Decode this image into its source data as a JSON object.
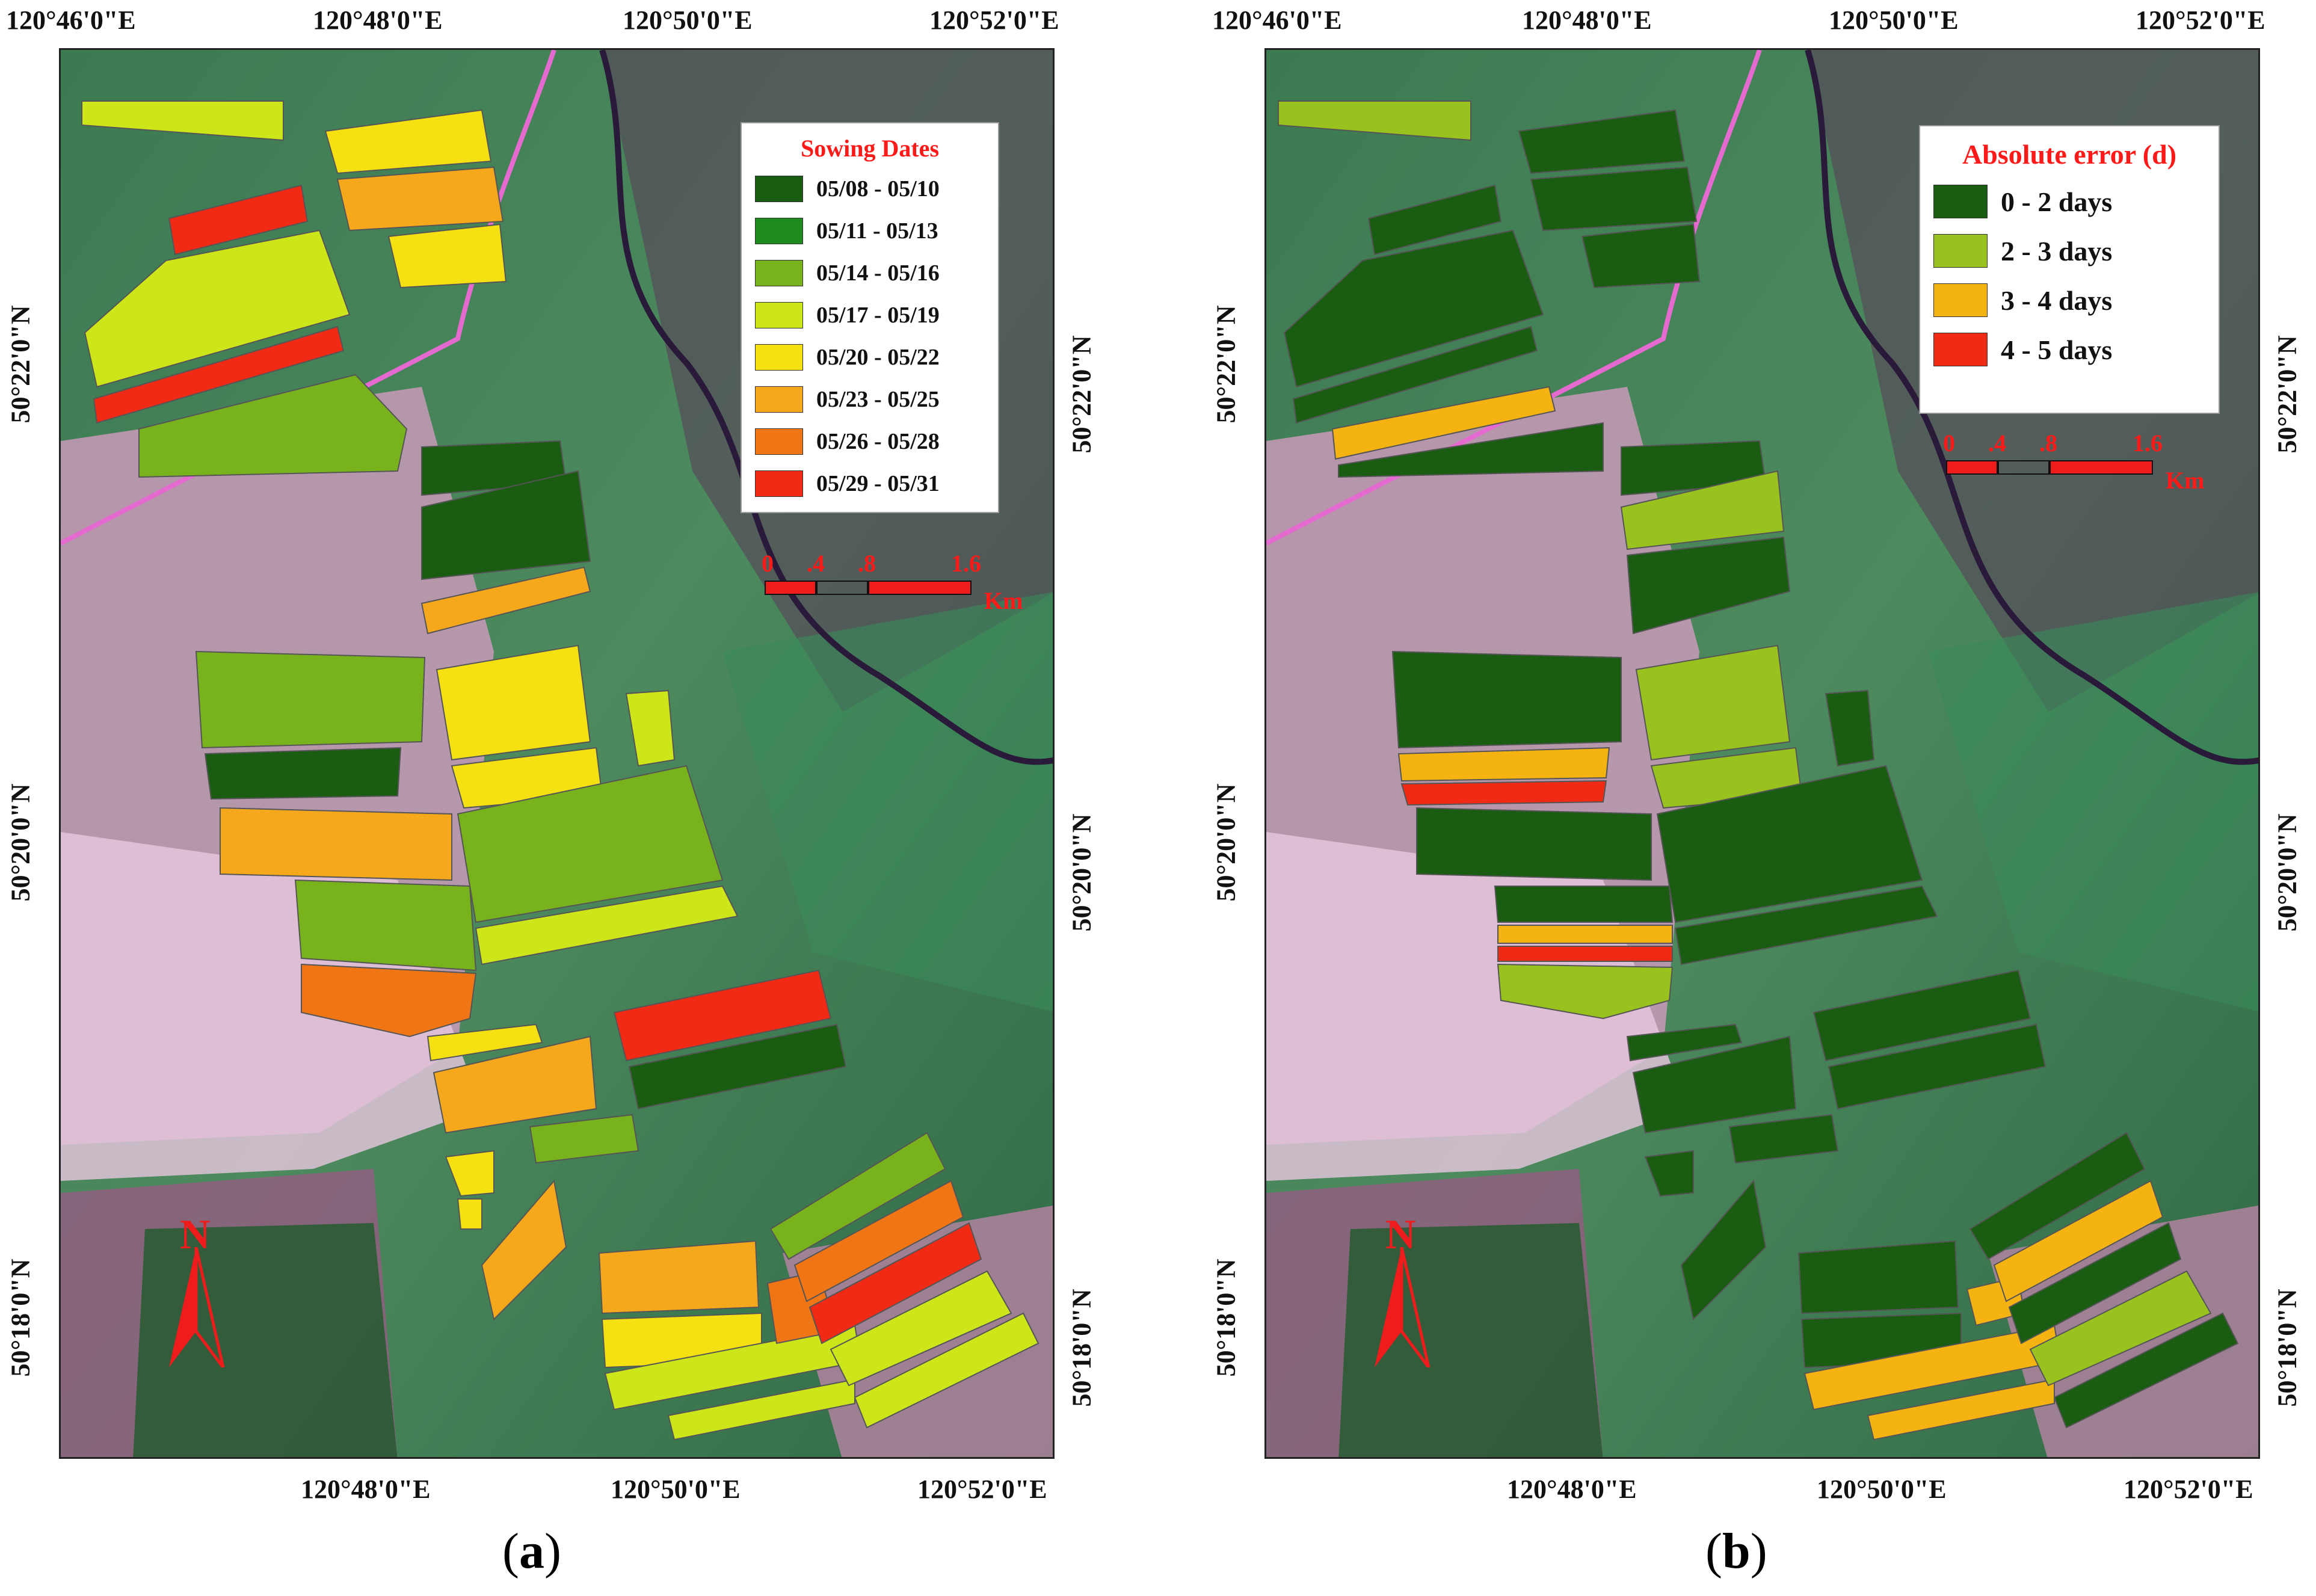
{
  "coordinates": {
    "top": [
      "120°46'0\"E",
      "120°48'0\"E",
      "120°50'0\"E",
      "120°52'0\"E"
    ],
    "bottom": [
      "120°48'0\"E",
      "120°50'0\"E",
      "120°52'0\"E"
    ],
    "left": [
      "50°22'0\"N",
      "50°20'0\"N",
      "50°18'0\"N"
    ],
    "right": [
      "50°22'0\"N",
      "50°20'0\"N",
      "50°18'0\"N"
    ]
  },
  "panel_a": {
    "caption_open": "(",
    "caption_letter": "a",
    "caption_close": ")",
    "legend": {
      "title": "Sowing Dates",
      "items": [
        {
          "label": "05/08 - 05/10",
          "color": "#1a5c12"
        },
        {
          "label": "05/11 - 05/13",
          "color": "#1f8a1f"
        },
        {
          "label": "05/14 - 05/16",
          "color": "#78b21c"
        },
        {
          "label": "05/17 - 05/19",
          "color": "#cce61a"
        },
        {
          "label": "05/20 - 05/22",
          "color": "#f5e012"
        },
        {
          "label": "05/23 - 05/25",
          "color": "#f5a81c"
        },
        {
          "label": "05/26 - 05/28",
          "color": "#f07514"
        },
        {
          "label": "05/29 - 05/31",
          "color": "#f02a14"
        }
      ]
    },
    "scale": {
      "t0": "0",
      "t1": ".4",
      "t2": ".8",
      "t3": "1.6",
      "unit": "Km"
    },
    "north": "N"
  },
  "panel_b": {
    "caption_open": "(",
    "caption_letter": "b",
    "caption_close": ")",
    "legend": {
      "title": "Absolute error (d)",
      "items": [
        {
          "label": "0 - 2 days",
          "color": "#1a5c12"
        },
        {
          "label": "2 - 3 days",
          "color": "#99c21f"
        },
        {
          "label": "3 - 4 days",
          "color": "#f5b312"
        },
        {
          "label": "4 - 5 days",
          "color": "#f02a14"
        }
      ]
    },
    "scale": {
      "t0": "0",
      "t1": ".4",
      "t2": ".8",
      "t3": "1.6",
      "unit": "Km"
    },
    "north": "N"
  }
}
